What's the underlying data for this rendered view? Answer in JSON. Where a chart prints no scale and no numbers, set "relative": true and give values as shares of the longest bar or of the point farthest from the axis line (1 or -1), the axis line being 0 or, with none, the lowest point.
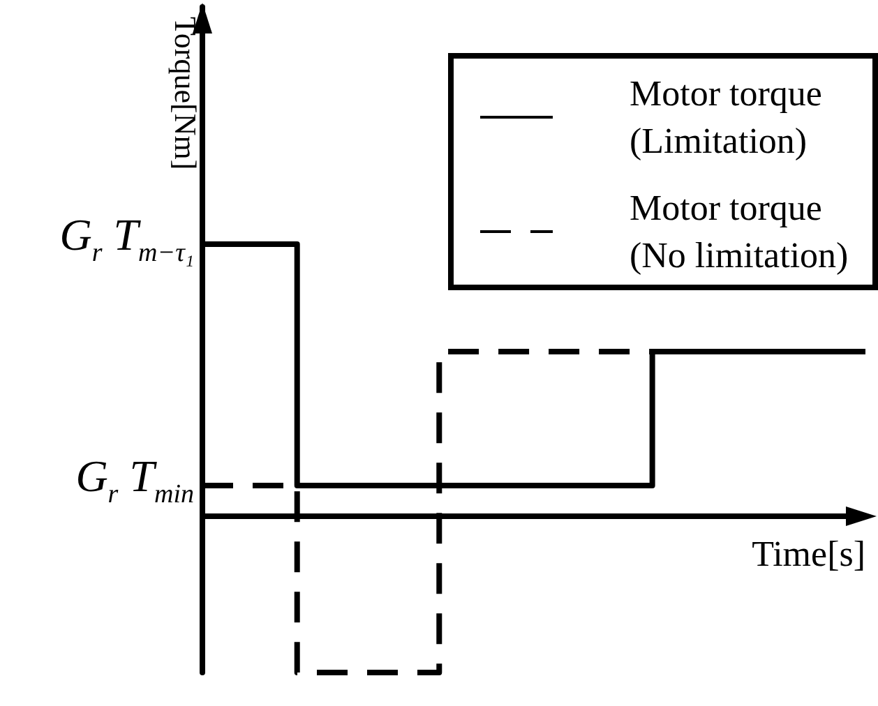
{
  "chart_data": {
    "type": "step",
    "xlabel": "Time[s]",
    "ylabel": "Torque[Nm]",
    "relative": true,
    "legend": "top right",
    "marker": "none",
    "grid": false,
    "categories": [
      null,
      null,
      null,
      null,
      null,
      null,
      null,
      null,
      null,
      null,
      null,
      null,
      null,
      null,
      null,
      null,
      null,
      null,
      null,
      null,
      null,
      null,
      null,
      null,
      null,
      null,
      null,
      null,
      null
    ],
    "series": [
      {
        "name": "Motor torque (Limitation)",
        "color": "#000000",
        "line_style": "solid",
        "values": [
          1,
          1,
          1,
          1,
          0.113,
          0.113,
          0.113,
          0.113,
          0.113,
          0.113,
          0.113,
          0.113,
          0.113,
          0.113,
          0.113,
          0.113,
          0.113,
          0.113,
          0.113,
          0.605,
          0.605,
          0.605,
          0.605,
          0.605,
          0.605,
          0.605,
          0.605,
          0.605,
          0.605
        ]
      },
      {
        "name": "Motor torque (No limitation)",
        "color": "#000000",
        "line_style": "dashed",
        "values": [
          0.113,
          0.113,
          0.113,
          0.113,
          -0.574,
          -0.574,
          -0.574,
          -0.574,
          -0.574,
          -0.574,
          0.605,
          0.605,
          0.605,
          0.605,
          0.605,
          0.605,
          0.605,
          0.605,
          0.605,
          0.605,
          0.605,
          0.605,
          0.605,
          0.605,
          0.605,
          0.605,
          0.605,
          0.605,
          0.605
        ]
      }
    ],
    "annotations": [
      "G$_{r}$ T$_{m−τ₁}$",
      "G$_{r}$ T$_{min}$"
    ]
  }
}
